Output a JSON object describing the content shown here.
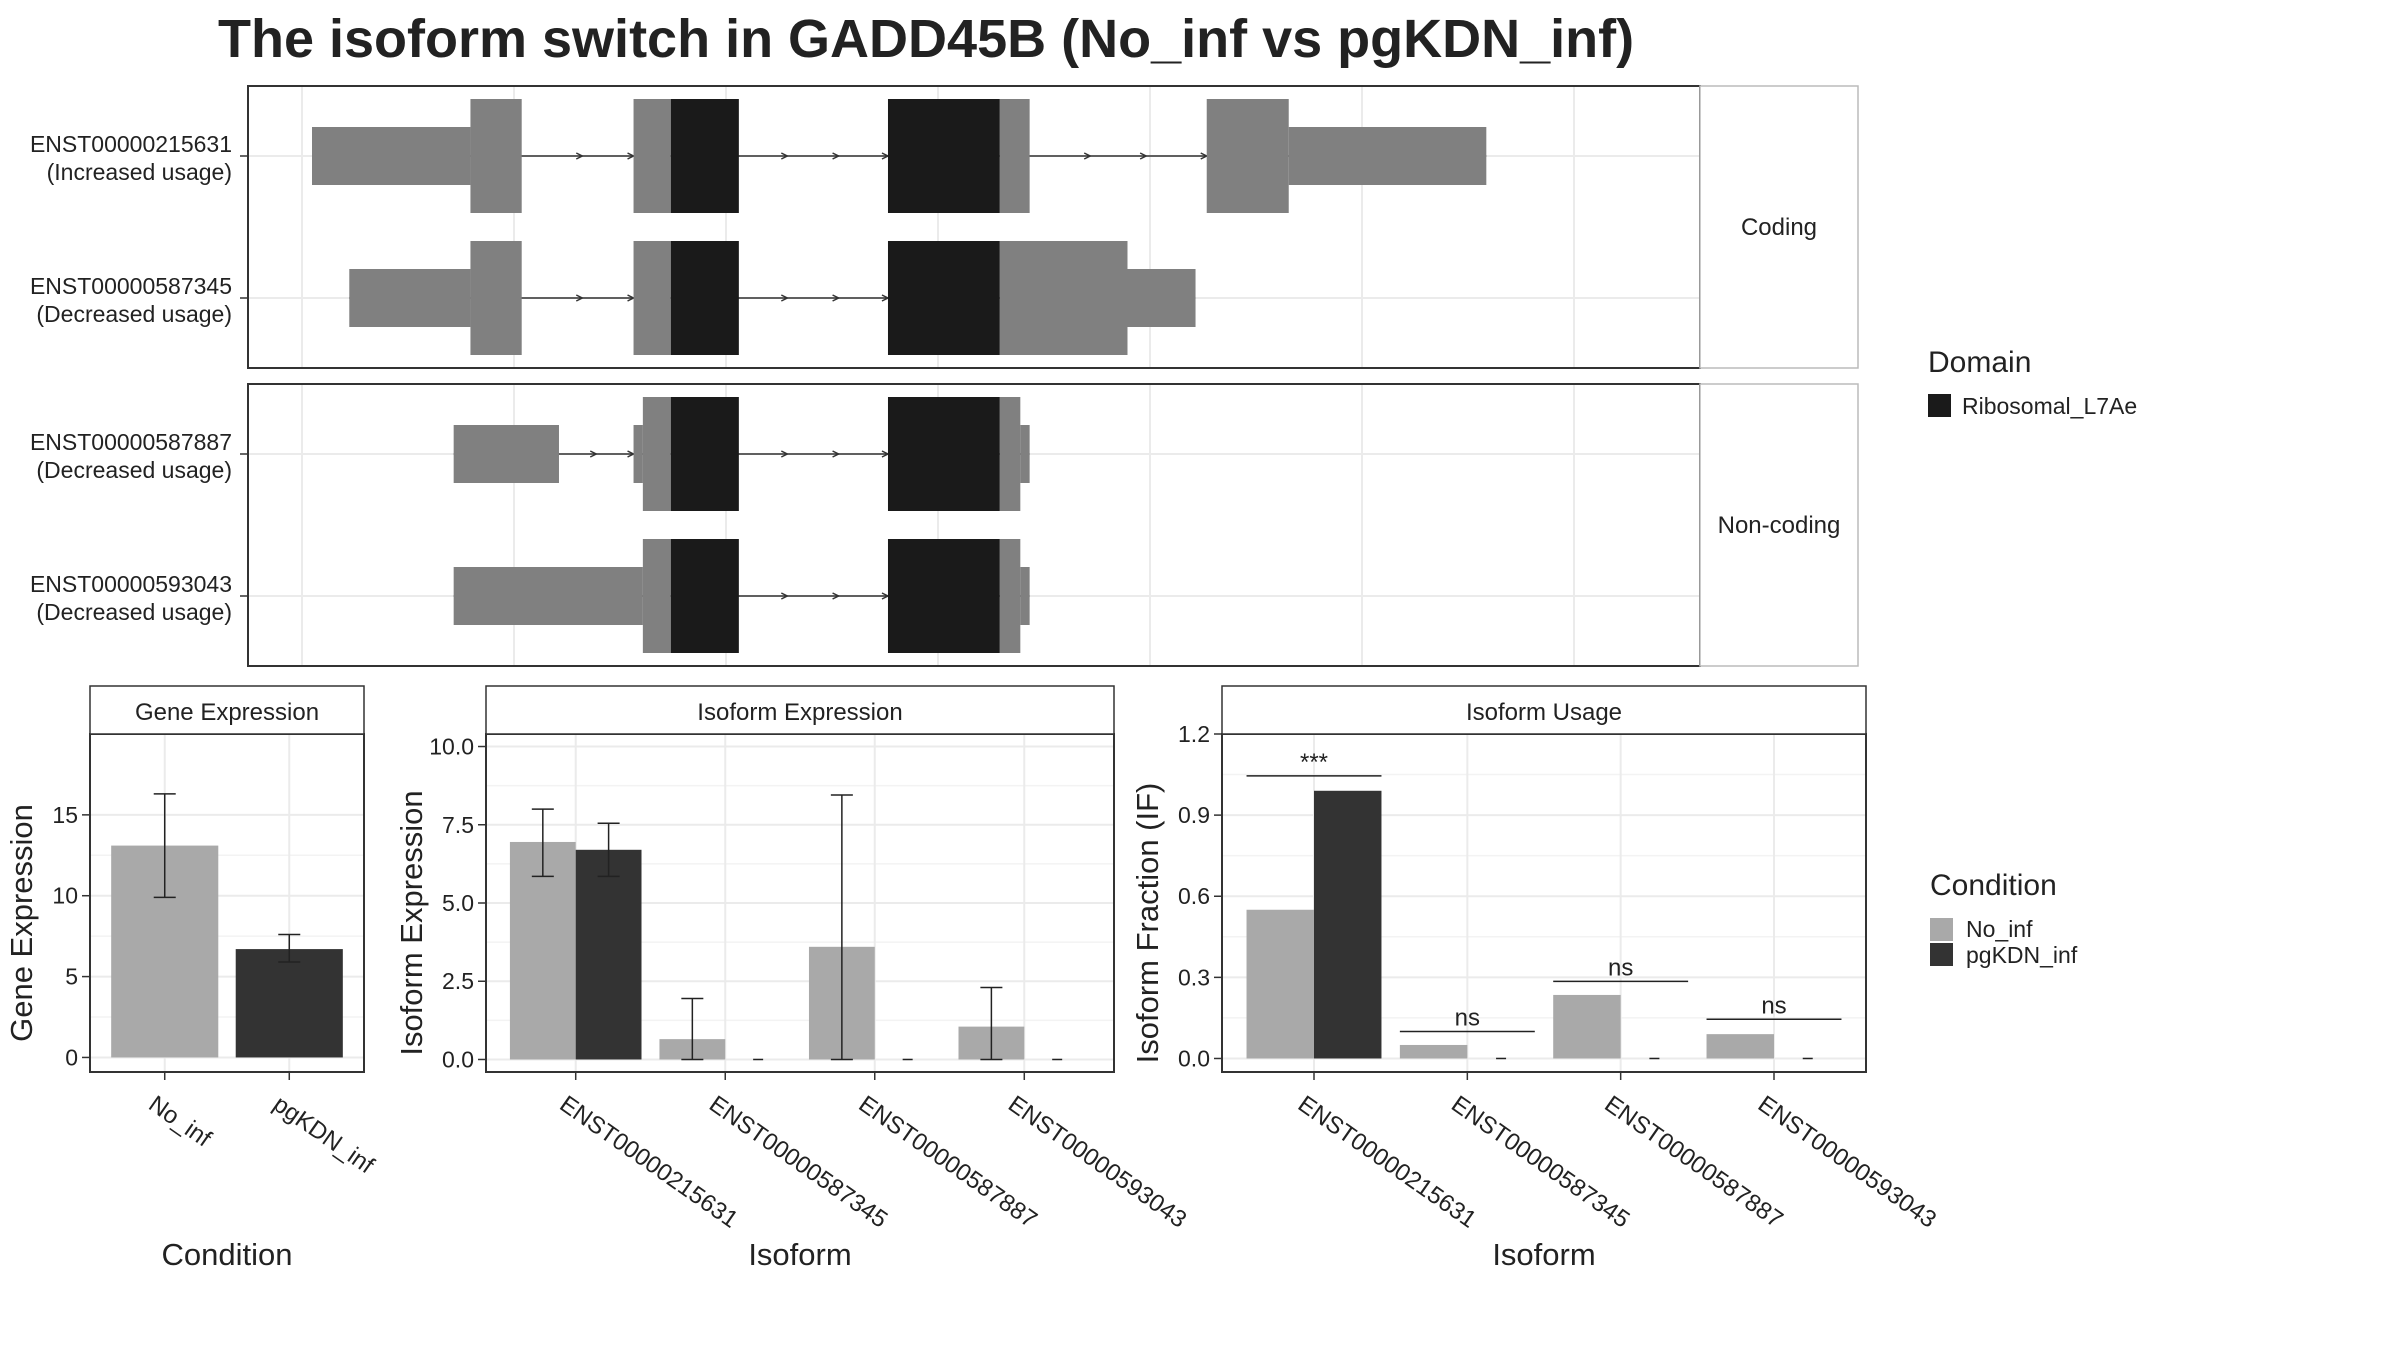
{
  "title": "The isoform switch in GADD45B (No_inf vs pgKDN_inf)",
  "colors": {
    "utr": "#808080",
    "domain": "#1a1a1a",
    "no_inf": "#a9a9a9",
    "pgkdn_inf": "#333333",
    "grid": "#ebebeb",
    "panel_border": "#333333",
    "strip_fill": "#ffffff"
  },
  "structure": {
    "groups": [
      {
        "label": "Coding",
        "transcripts": [
          {
            "id": "ENST00000215631",
            "usage": "(Increased usage)",
            "exons": [
              {
                "start": 0.0,
                "end": 1.7,
                "type": "utr"
              },
              {
                "start": 1.7,
                "end": 2.25,
                "type": "cds"
              },
              {
                "start": 3.45,
                "end": 3.85,
                "type": "cds"
              },
              {
                "start": 3.85,
                "end": 4.58,
                "type": "domain"
              },
              {
                "start": 6.18,
                "end": 7.38,
                "type": "domain"
              },
              {
                "start": 7.38,
                "end": 7.7,
                "type": "cds"
              },
              {
                "start": 9.6,
                "end": 10.48,
                "type": "cds"
              },
              {
                "start": 10.48,
                "end": 12.6,
                "type": "utr"
              }
            ],
            "arrows": [
              2.9,
              3.45,
              5.1,
              5.65,
              6.18,
              8.35,
              8.95,
              9.6
            ]
          },
          {
            "id": "ENST00000587345",
            "usage": "(Decreased usage)",
            "exons": [
              {
                "start": 0.4,
                "end": 1.7,
                "type": "utr"
              },
              {
                "start": 1.7,
                "end": 2.25,
                "type": "cds"
              },
              {
                "start": 3.45,
                "end": 3.85,
                "type": "cds"
              },
              {
                "start": 3.85,
                "end": 4.58,
                "type": "domain"
              },
              {
                "start": 6.18,
                "end": 7.38,
                "type": "domain"
              },
              {
                "start": 7.38,
                "end": 8.75,
                "type": "cds"
              },
              {
                "start": 8.75,
                "end": 9.48,
                "type": "utr"
              }
            ],
            "arrows": [
              2.9,
              3.45,
              5.1,
              5.65,
              6.18
            ]
          }
        ]
      },
      {
        "label": "Non-coding",
        "transcripts": [
          {
            "id": "ENST00000587887",
            "usage": "(Decreased usage)",
            "exons": [
              {
                "start": 1.52,
                "end": 2.65,
                "type": "utr"
              },
              {
                "start": 3.45,
                "end": 3.55,
                "type": "utr"
              },
              {
                "start": 3.55,
                "end": 3.85,
                "type": "cds"
              },
              {
                "start": 3.85,
                "end": 4.58,
                "type": "domain"
              },
              {
                "start": 6.18,
                "end": 7.38,
                "type": "domain"
              },
              {
                "start": 7.38,
                "end": 7.6,
                "type": "cds"
              },
              {
                "start": 7.6,
                "end": 7.7,
                "type": "utr"
              }
            ],
            "arrows": [
              3.05,
              3.45,
              5.1,
              5.65,
              6.18
            ]
          },
          {
            "id": "ENST00000593043",
            "usage": "(Decreased usage)",
            "exons": [
              {
                "start": 1.52,
                "end": 3.55,
                "type": "utr"
              },
              {
                "start": 3.55,
                "end": 3.85,
                "type": "cds"
              },
              {
                "start": 3.85,
                "end": 4.58,
                "type": "domain"
              },
              {
                "start": 6.18,
                "end": 7.38,
                "type": "domain"
              },
              {
                "start": 7.38,
                "end": 7.6,
                "type": "cds"
              },
              {
                "start": 7.6,
                "end": 7.7,
                "type": "utr"
              }
            ],
            "arrows": [
              5.1,
              5.65,
              6.18
            ]
          }
        ]
      }
    ],
    "legend": {
      "title": "Domain",
      "items": [
        "Ribosomal_L7Ae"
      ]
    }
  },
  "chart_data": [
    {
      "type": "bar",
      "title": "Gene Expression",
      "xlabel": "Condition",
      "ylabel": "Gene Expression",
      "categories": [
        "No_inf",
        "pgKDN_inf"
      ],
      "values": [
        13.1,
        6.7
      ],
      "error_low": [
        9.9,
        5.9
      ],
      "error_high": [
        16.3,
        7.6
      ],
      "ylim": [
        -0.9,
        20
      ],
      "yticks": [
        0,
        5,
        10,
        15
      ]
    },
    {
      "type": "bar",
      "title": "Isoform Expression",
      "xlabel": "Isoform",
      "ylabel": "Isoform Expression",
      "categories": [
        "ENST00000215631",
        "ENST00000587345",
        "ENST00000587887",
        "ENST00000593043"
      ],
      "series": [
        {
          "name": "No_inf",
          "values": [
            6.95,
            0.65,
            3.6,
            1.05
          ],
          "error_low": [
            5.85,
            0.0,
            0.0,
            0.0
          ],
          "error_high": [
            8.0,
            1.95,
            8.45,
            2.3
          ]
        },
        {
          "name": "pgKDN_inf",
          "values": [
            6.7,
            0.0,
            0.0,
            0.0
          ],
          "error_low": [
            5.85,
            0.0,
            0.0,
            0.0
          ],
          "error_high": [
            7.55,
            0.0,
            0.0,
            0.0
          ]
        }
      ],
      "ylim": [
        -0.4,
        10.4
      ],
      "yticks": [
        "0.0",
        "2.5",
        "5.0",
        "7.5",
        "10.0"
      ]
    },
    {
      "type": "bar",
      "title": "Isoform Usage",
      "xlabel": "Isoform",
      "ylabel": "Isoform Fraction (IF)",
      "categories": [
        "ENST00000215631",
        "ENST00000587345",
        "ENST00000587887",
        "ENST00000593043"
      ],
      "series": [
        {
          "name": "No_inf",
          "values": [
            0.55,
            0.05,
            0.235,
            0.09
          ]
        },
        {
          "name": "pgKDN_inf",
          "values": [
            0.99,
            0.0,
            0.0,
            0.0
          ]
        }
      ],
      "significance": [
        {
          "label": "***",
          "y": 1.045
        },
        {
          "label": "ns",
          "y": 0.1
        },
        {
          "label": "ns",
          "y": 0.285
        },
        {
          "label": "ns",
          "y": 0.145
        }
      ],
      "ylim": [
        -0.05,
        1.2
      ],
      "yticks": [
        "0.0",
        "0.3",
        "0.6",
        "0.9",
        "1.2"
      ]
    }
  ],
  "condition_legend": {
    "title": "Condition",
    "items": [
      "No_inf",
      "pgKDN_inf"
    ]
  }
}
